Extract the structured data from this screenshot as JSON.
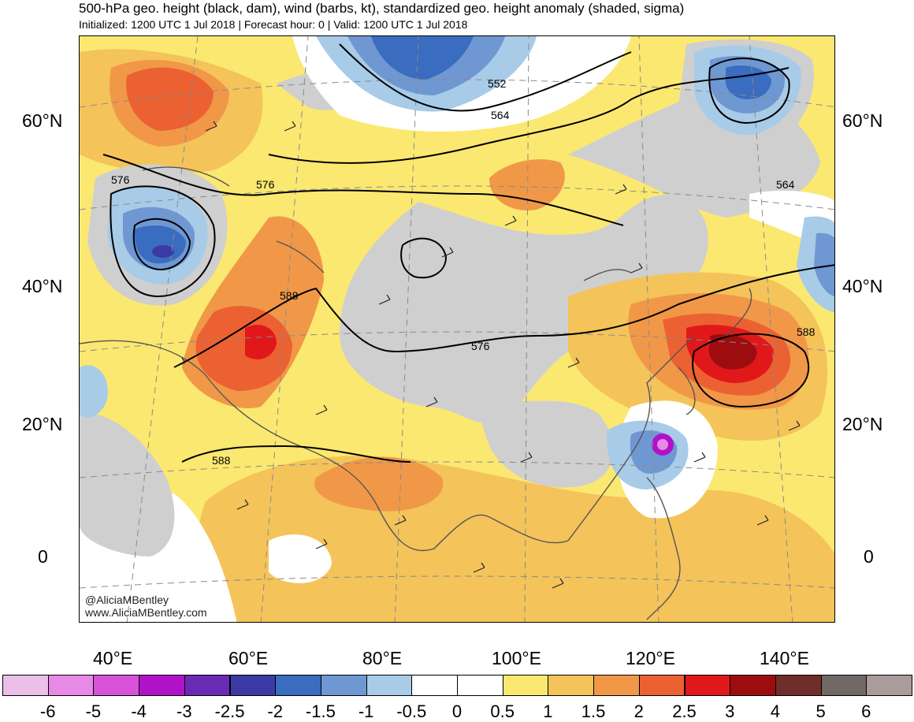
{
  "header": {
    "title": "500-hPa geo. height (black, dam), wind (barbs, kt), standardized geo. height anomaly (shaded, sigma)",
    "subtitle": "Initialized: 1200 UTC 1 Jul 2018 | Forecast hour: 0 | Valid: 1200 UTC 1 Jul 2018"
  },
  "axes": {
    "lat_labels": [
      "60°N",
      "40°N",
      "20°N",
      "0"
    ],
    "lon_labels": [
      "40°E",
      "60°E",
      "80°E",
      "100°E",
      "120°E",
      "140°E"
    ]
  },
  "contour_labels": [
    "552",
    "564",
    "576",
    "576",
    "564",
    "588",
    "576",
    "588",
    "588"
  ],
  "watermark": [
    "@AliciaMBentley",
    "www.AliciaMBentley.com"
  ],
  "colorbar": {
    "labels": [
      "-6",
      "-5",
      "-4",
      "-3",
      "-2.5",
      "-2",
      "-1.5",
      "-1",
      "-0.5",
      "0",
      "0.5",
      "1",
      "1.5",
      "2",
      "2.5",
      "3",
      "4",
      "5",
      "6"
    ],
    "colors": [
      "#ebbfe8",
      "#e68ae6",
      "#d752d9",
      "#b012c8",
      "#6a2bb4",
      "#3c3ba6",
      "#3a6cc0",
      "#6f98d2",
      "#a8cbe8",
      "#ffffff",
      "#ffffff",
      "#fbe870",
      "#f4c35a",
      "#f09848",
      "#ec6132",
      "#e0181a",
      "#9d0d10",
      "#702e2a",
      "#726866",
      "#a99c9b"
    ]
  },
  "colors": {
    "land_gray": "#cfcfcf",
    "contour": "#000000",
    "coast": "#555555",
    "grid": "#8a8a8a"
  }
}
